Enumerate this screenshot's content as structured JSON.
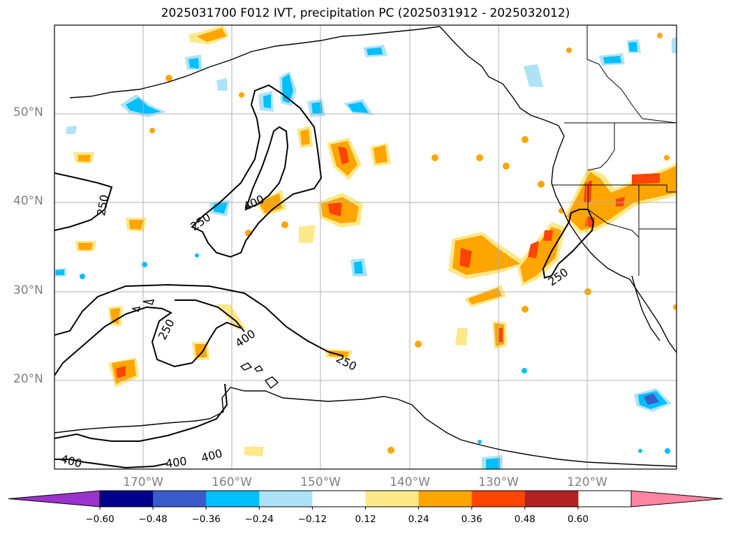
{
  "title": "2025031700 F012 IVT, precipitation PC (2025031912 - 2025032012)",
  "map": {
    "lat_labels": [
      "50°N",
      "40°N",
      "30°N",
      "20°N"
    ],
    "lon_labels": [
      "170°W",
      "160°W",
      "150°W",
      "140°W",
      "130°W",
      "120°W"
    ],
    "contour_labels": [
      "250",
      "250",
      "400",
      "250",
      "400",
      "250",
      "250",
      "400",
      "400",
      "400"
    ]
  },
  "colorbar": {
    "ticks": [
      "−0.60",
      "−0.48",
      "−0.36",
      "−0.24",
      "−0.12",
      "0.12",
      "0.24",
      "0.36",
      "0.48",
      "0.60"
    ],
    "colors": [
      "#9933cc",
      "#00008b",
      "#3a5bcc",
      "#00bfff",
      "#aee3f7",
      "#ffffff",
      "#fde88a",
      "#ffa500",
      "#ff4500",
      "#b22222",
      "#ff85a2"
    ]
  }
}
